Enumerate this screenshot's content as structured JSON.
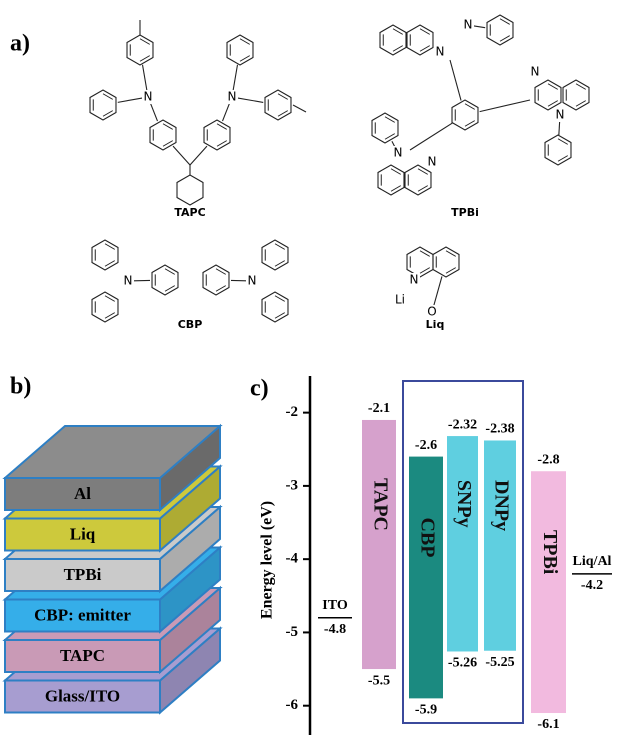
{
  "panel_a": {
    "label": "a)",
    "molecules": [
      {
        "name": "TAPC",
        "atoms": [
          "N",
          "N"
        ]
      },
      {
        "name": "TPBi",
        "atoms": [
          "N",
          "N",
          "N",
          "N",
          "N",
          "N"
        ]
      },
      {
        "name": "CBP",
        "atoms": [
          "N",
          "N"
        ]
      },
      {
        "name": "Liq",
        "atoms": [
          "N",
          "Li",
          "O"
        ]
      }
    ]
  },
  "panel_b": {
    "label": "b)",
    "layers": [
      {
        "name": "Al",
        "color": "#7d7d7d"
      },
      {
        "name": "Liq",
        "color": "#cdc93c"
      },
      {
        "name": "TPBi",
        "color": "#cacaca"
      },
      {
        "name": "CBP: emitter",
        "color": "#35aee9"
      },
      {
        "name": "TAPC",
        "color": "#c99ab6"
      },
      {
        "name": "Glass/ITO",
        "color": "#a79dd0"
      }
    ]
  },
  "panel_c": {
    "label": "c)",
    "chart_data": {
      "type": "energy-level",
      "y_label": "Energy level (eV)",
      "ylim": [
        -6.4,
        -1.5
      ],
      "yticks": [
        -2,
        -3,
        -4,
        -5,
        -6
      ],
      "bars": [
        {
          "name": "TAPC",
          "top": -2.1,
          "bottom": -5.5,
          "color": "#d6a1cc"
        },
        {
          "name": "CBP",
          "top": -2.6,
          "bottom": -5.9,
          "color": "#1b8a80"
        },
        {
          "name": "SNPy",
          "top": -2.32,
          "bottom": -5.26,
          "color": "#5fcfe0"
        },
        {
          "name": "DNPy",
          "top": -2.38,
          "bottom": -5.25,
          "color": "#5fcfe0"
        },
        {
          "name": "TPBi",
          "top": -2.8,
          "bottom": -6.1,
          "color": "#f2badf"
        }
      ],
      "levels": [
        {
          "name": "ITO",
          "value": -4.8
        },
        {
          "name": "Liq/Al",
          "value": -4.2
        }
      ]
    }
  }
}
